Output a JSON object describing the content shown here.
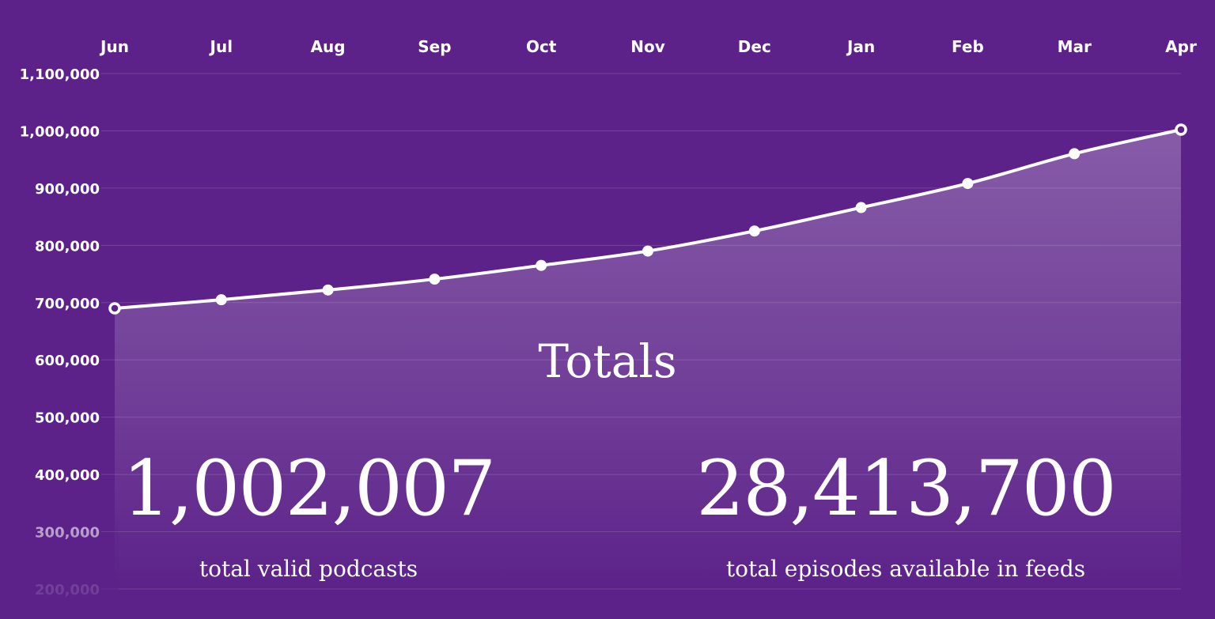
{
  "chart_data": {
    "type": "area",
    "title": "",
    "xlabel": "",
    "ylabel": "",
    "categories": [
      "Jun",
      "Jul",
      "Aug",
      "Sep",
      "Oct",
      "Nov",
      "Dec",
      "Jan",
      "Feb",
      "Mar",
      "Apr"
    ],
    "series": [
      {
        "values": [
          690000,
          705000,
          722000,
          741000,
          765000,
          790000,
          825000,
          866000,
          908000,
          960000,
          1002007
        ]
      }
    ],
    "ylim": [
      200000,
      1100000
    ],
    "y_ticks": [
      "1,100,000",
      "1,000,000",
      "900,000",
      "800,000",
      "700,000",
      "600,000",
      "500,000",
      "400,000",
      "300,000",
      "200,000"
    ],
    "x_axis_position": "top",
    "grid": true,
    "colors": {
      "background": "#5c2289",
      "line": "#ffffff",
      "area": "#ffffff"
    }
  },
  "overlay": {
    "title": "Totals",
    "stats": [
      {
        "value": "1,002,007",
        "caption": "total valid podcasts"
      },
      {
        "value": "28,413,700",
        "caption": "total episodes available in feeds"
      }
    ]
  }
}
